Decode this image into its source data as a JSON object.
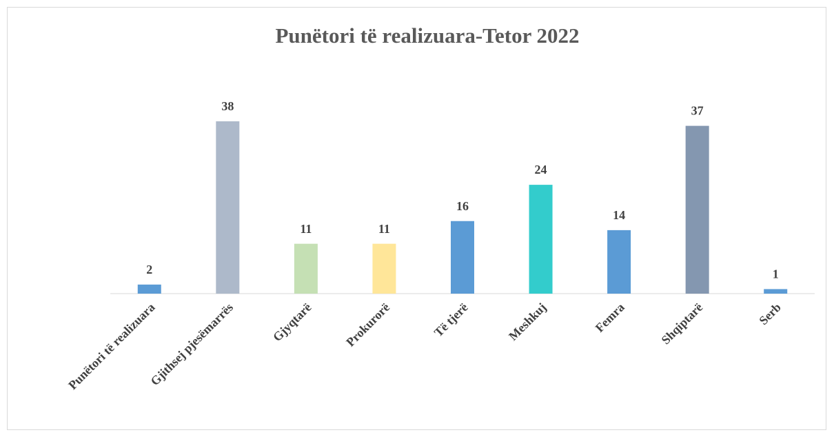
{
  "chart_data": {
    "type": "bar",
    "title": "Punëtori të realizuara-Tetor 2022",
    "categories": [
      "Punëtori të realizuara",
      "Gjithsej pjesëmarrës",
      "Gjyqtarë",
      "Prokurorë",
      "Të tjerë",
      "Meshkuj",
      "Femra",
      "Shqiptarë",
      "Serb"
    ],
    "values": [
      2,
      38,
      11,
      11,
      16,
      24,
      14,
      37,
      1
    ],
    "colors": [
      "#5b9bd5",
      "#adb9ca",
      "#c5e0b4",
      "#ffe699",
      "#5b9bd5",
      "#33cccc",
      "#5b9bd5",
      "#8497b0",
      "#5b9bd5"
    ],
    "grid": false
  }
}
